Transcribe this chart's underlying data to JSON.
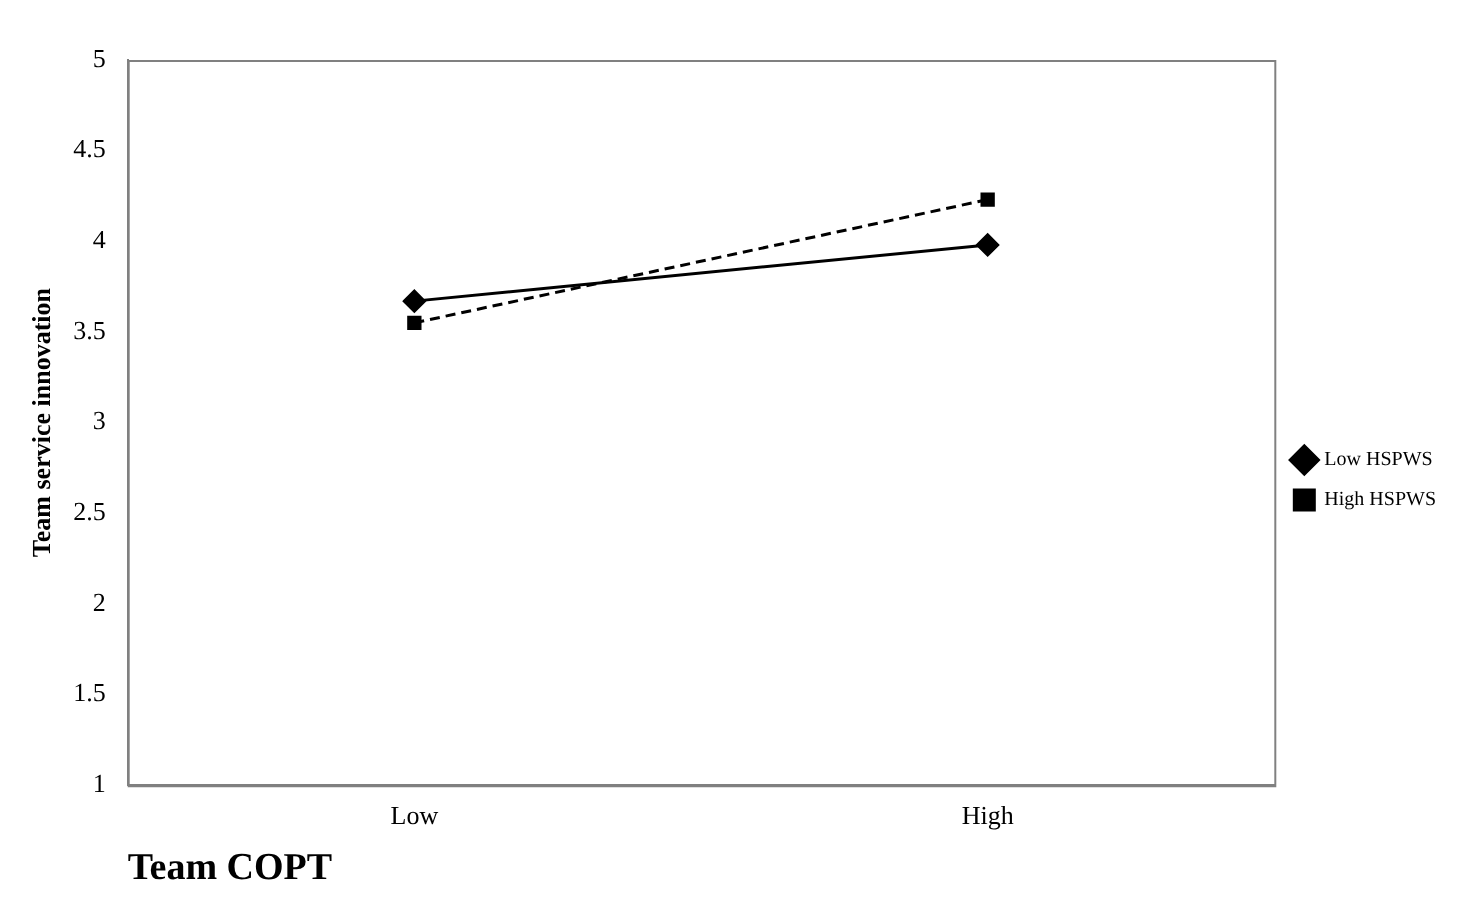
{
  "chart_data": {
    "type": "line",
    "categories": [
      "Low",
      "High"
    ],
    "ylabel": "Team service innovation",
    "xlabel": "Team COPT",
    "ylim": [
      1,
      5
    ],
    "yticks": [
      1,
      1.5,
      2,
      2.5,
      3,
      3.5,
      4,
      4.5,
      5
    ],
    "grid": false,
    "legend": "right",
    "series": [
      {
        "name": "Low HSPWS",
        "color": "#000000",
        "values": [
          3.67,
          3.98
        ],
        "marker": "diamond",
        "line_style": "solid"
      },
      {
        "name": "High HSPWS",
        "color": "#000000",
        "values": [
          3.55,
          4.23
        ],
        "marker": "square",
        "line_style": "dashed"
      }
    ]
  }
}
